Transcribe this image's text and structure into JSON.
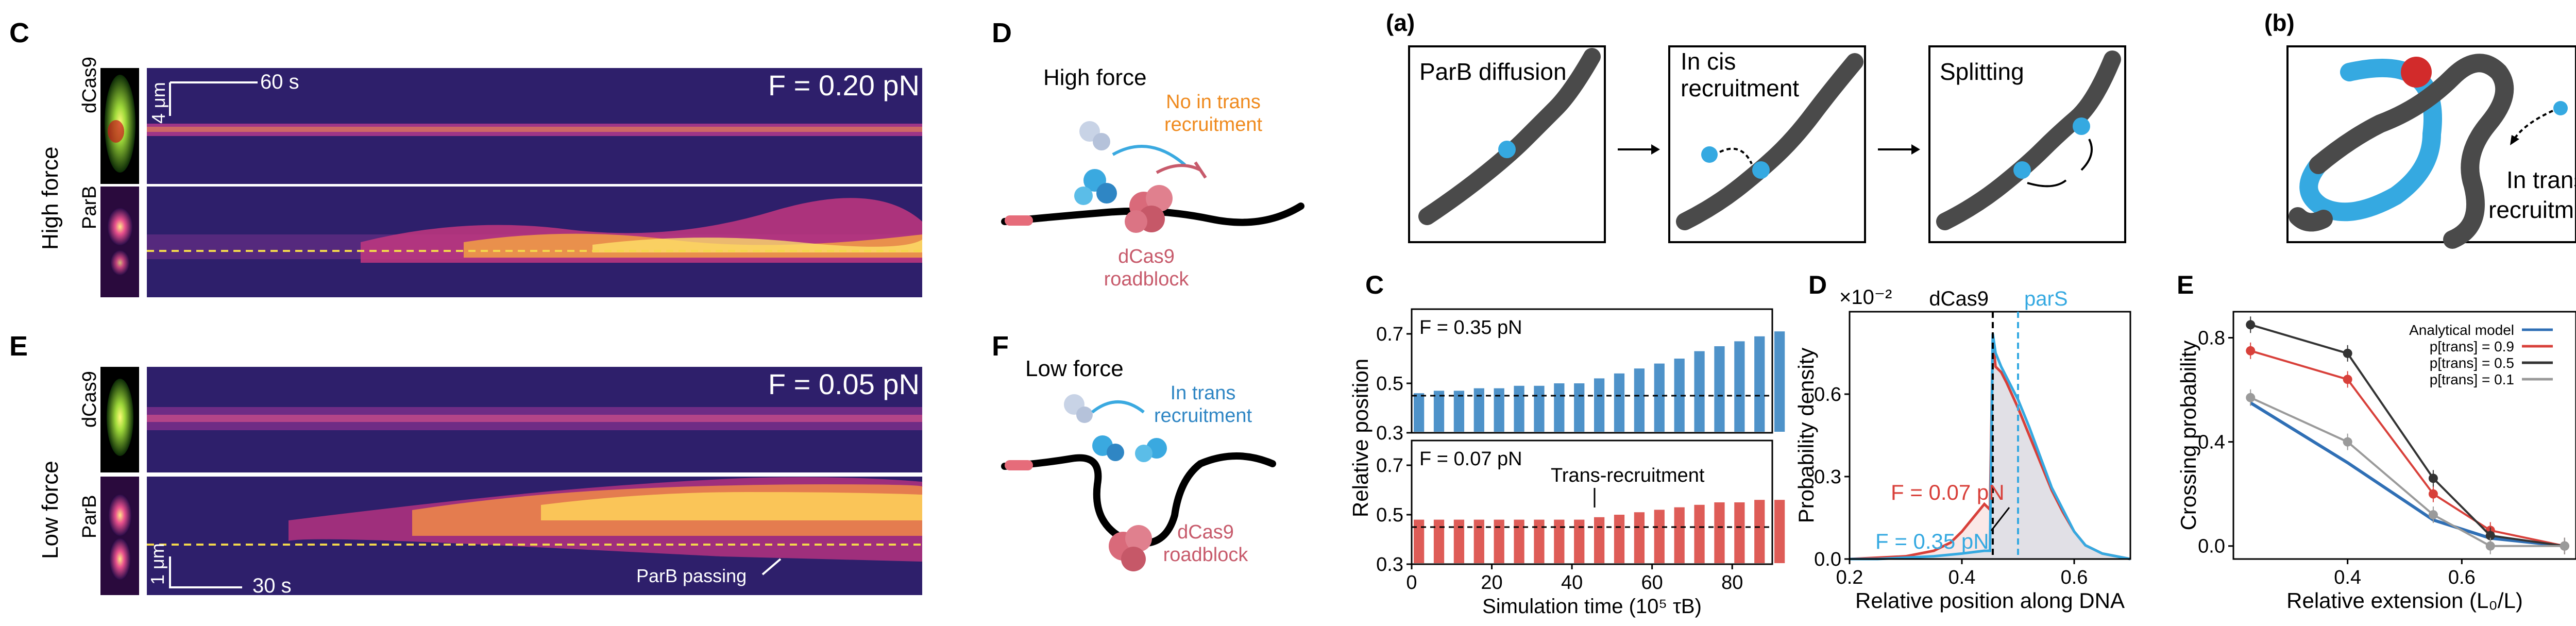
{
  "panel_letters": {
    "C_left": "C",
    "D_left": "D",
    "E_left": "E",
    "F_left": "F",
    "a": "(a)",
    "b": "(b)",
    "C_right": "C",
    "D_right": "D",
    "E_right": "E"
  },
  "kymo_top": {
    "force": "F = 0.20 pN",
    "time_scale": "60 s",
    "length_scale": "4 μm",
    "row_label": "High force",
    "channel_top": "dCas9",
    "channel_bottom": "ParB"
  },
  "kymo_bottom": {
    "force": "F = 0.05 pN",
    "time_scale": "30 s",
    "length_scale": "1 μm",
    "row_label": "Low force",
    "channel_top": "dCas9",
    "channel_bottom": "ParB",
    "annotation": "ParB passing"
  },
  "schematic_high": {
    "title": "High force",
    "note": "No in trans\nrecruitment",
    "roadblock": "dCas9\nroadblock"
  },
  "schematic_low": {
    "title": "Low force",
    "note": "In trans\nrecruitment",
    "roadblock": "dCas9\nroadblock"
  },
  "sim_steps": [
    "ParB diffusion",
    "In cis\nrecruitment",
    "Splitting"
  ],
  "sim_b_label": "In trans\nrecruitment",
  "colors": {
    "parb_blue": "#35a9e1",
    "polymer_gray": "#4a4a4a",
    "dcas9_red": "#d8403a",
    "kymo_bg": "#2e1f6b"
  },
  "chart_data": [
    {
      "type": "bar",
      "id": "C_right_top",
      "annotation": "F = 0.35 pN",
      "x": [
        0,
        5,
        10,
        15,
        20,
        25,
        30,
        35,
        40,
        45,
        50,
        55,
        60,
        65,
        70,
        75,
        80,
        85,
        90
      ],
      "values": [
        0.46,
        0.47,
        0.47,
        0.48,
        0.48,
        0.49,
        0.49,
        0.5,
        0.5,
        0.52,
        0.54,
        0.56,
        0.58,
        0.6,
        0.63,
        0.65,
        0.67,
        0.69,
        0.71
      ],
      "reference": 0.45,
      "xlim": [
        0,
        90
      ],
      "ylim": [
        0.3,
        0.8
      ],
      "yticks": [
        0.3,
        0.5,
        0.7
      ],
      "ylabel": "Relative position"
    },
    {
      "type": "bar",
      "id": "C_right_bottom",
      "annotation": "F = 0.07 pN",
      "label": "Trans-recruitment",
      "x": [
        0,
        5,
        10,
        15,
        20,
        25,
        30,
        35,
        40,
        45,
        50,
        55,
        60,
        65,
        70,
        75,
        80,
        85,
        90
      ],
      "values": [
        0.48,
        0.48,
        0.48,
        0.48,
        0.48,
        0.48,
        0.48,
        0.48,
        0.48,
        0.49,
        0.5,
        0.51,
        0.52,
        0.53,
        0.54,
        0.55,
        0.55,
        0.56,
        0.56
      ],
      "reference": 0.45,
      "xlim": [
        0,
        90
      ],
      "ylim": [
        0.3,
        0.8
      ],
      "yticks": [
        0.3,
        0.5,
        0.7
      ],
      "xticks": [
        0,
        20,
        40,
        60,
        80
      ],
      "xlabel": "Simulation time (10⁵ τB)"
    },
    {
      "type": "line",
      "id": "D_right",
      "multiplier": "×10⁻²",
      "xlabel": "Relative position along DNA",
      "ylabel": "Probability density",
      "xlim": [
        0.2,
        0.7
      ],
      "ylim": [
        0,
        0.9
      ],
      "xticks": [
        0.2,
        0.4,
        0.6
      ],
      "yticks": [
        0.0,
        0.3,
        0.6
      ],
      "markers": [
        {
          "label": "dCas9",
          "x": 0.455
        },
        {
          "label": "parS",
          "x": 0.5
        }
      ],
      "series": [
        {
          "name": "F = 0.07 pN",
          "color": "#d8403a",
          "x": [
            0.2,
            0.25,
            0.3,
            0.35,
            0.38,
            0.4,
            0.42,
            0.44,
            0.45,
            0.455,
            0.46,
            0.47,
            0.48,
            0.5,
            0.52,
            0.54,
            0.56,
            0.58,
            0.6,
            0.62,
            0.65,
            0.7
          ],
          "y": [
            0.0,
            0.005,
            0.01,
            0.03,
            0.06,
            0.1,
            0.15,
            0.2,
            0.18,
            0.8,
            0.7,
            0.68,
            0.64,
            0.55,
            0.45,
            0.35,
            0.25,
            0.17,
            0.1,
            0.05,
            0.02,
            0.0
          ]
        },
        {
          "name": "F = 0.35 pN",
          "color": "#35a9e1",
          "x": [
            0.2,
            0.25,
            0.3,
            0.35,
            0.4,
            0.42,
            0.44,
            0.45,
            0.455,
            0.46,
            0.47,
            0.48,
            0.5,
            0.52,
            0.54,
            0.56,
            0.58,
            0.6,
            0.62,
            0.65,
            0.7
          ],
          "y": [
            0.0,
            0.0,
            0.005,
            0.01,
            0.02,
            0.025,
            0.03,
            0.03,
            0.82,
            0.75,
            0.7,
            0.66,
            0.58,
            0.48,
            0.37,
            0.26,
            0.18,
            0.1,
            0.05,
            0.02,
            0.0
          ]
        }
      ]
    },
    {
      "type": "line",
      "id": "E_right",
      "xlabel": "Relative extension (L₀/L)",
      "ylabel": "Crossing probability",
      "xlim": [
        0.2,
        0.8
      ],
      "ylim": [
        -0.05,
        0.9
      ],
      "xticks": [
        0.4,
        0.6
      ],
      "yticks": [
        0.0,
        0.4,
        0.8
      ],
      "series": [
        {
          "name": "Analytical model",
          "color": "#2f6fb5",
          "x": [
            0.23,
            0.4,
            0.55,
            0.65,
            0.78
          ],
          "y": [
            0.55,
            0.32,
            0.1,
            0.03,
            0.0
          ]
        },
        {
          "name": "p[trans] = 0.9",
          "color": "#d8403a",
          "x": [
            0.23,
            0.4,
            0.55,
            0.65,
            0.78
          ],
          "y": [
            0.75,
            0.64,
            0.2,
            0.06,
            0.0
          ]
        },
        {
          "name": "p[trans] = 0.5",
          "color": "#333333",
          "x": [
            0.23,
            0.4,
            0.55,
            0.65,
            0.78
          ],
          "y": [
            0.85,
            0.74,
            0.26,
            0.04,
            0.0
          ]
        },
        {
          "name": "p[trans] = 0.1",
          "color": "#9a9a9a",
          "x": [
            0.23,
            0.4,
            0.55,
            0.65,
            0.78
          ],
          "y": [
            0.57,
            0.4,
            0.12,
            0.0,
            0.0
          ]
        }
      ]
    }
  ]
}
